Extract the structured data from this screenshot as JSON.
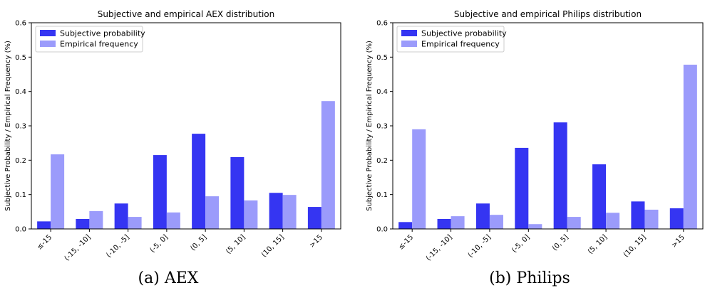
{
  "colors": {
    "subjective": "#3535f2",
    "empirical": "#9b9bfb"
  },
  "captions": [
    "(a) AEX",
    "(b) Philips"
  ],
  "chart_data": [
    {
      "type": "bar",
      "title": "Subjective and empirical AEX distribution",
      "ylabel": "Subjective Probability / Empirical Frequency (%)",
      "xlabel": "",
      "ylim": [
        0,
        0.6
      ],
      "yticks": [
        "0.0",
        "0.1",
        "0.2",
        "0.3",
        "0.4",
        "0.5",
        "0.6"
      ],
      "categories": [
        "≤-15",
        "(-15, -10]",
        "(-10, -5]",
        "(-5, 0]",
        "(0, 5]",
        "(5, 10]",
        "(10, 15]",
        ">15"
      ],
      "legend_position": "top-left",
      "series": [
        {
          "name": "Subjective probability",
          "values": [
            0.022,
            0.029,
            0.074,
            0.215,
            0.277,
            0.209,
            0.105,
            0.064
          ]
        },
        {
          "name": "Empirical frequency",
          "values": [
            0.217,
            0.052,
            0.035,
            0.048,
            0.095,
            0.083,
            0.099,
            0.372
          ]
        }
      ]
    },
    {
      "type": "bar",
      "title": "Subjective and empirical Philips distribution",
      "ylabel": "Subjective Probability / Empirical Frequency (%)",
      "xlabel": "",
      "ylim": [
        0,
        0.6
      ],
      "yticks": [
        "0.0",
        "0.1",
        "0.2",
        "0.3",
        "0.4",
        "0.5",
        "0.6"
      ],
      "categories": [
        "≤-15",
        "(-15, -10]",
        "(-10, -5]",
        "(-5, 0]",
        "(0, 5]",
        "(5, 10]",
        "(10, 15]",
        ">15"
      ],
      "legend_position": "top-left",
      "series": [
        {
          "name": "Subjective probability",
          "values": [
            0.02,
            0.029,
            0.074,
            0.236,
            0.31,
            0.188,
            0.08,
            0.06
          ]
        },
        {
          "name": "Empirical frequency",
          "values": [
            0.29,
            0.037,
            0.041,
            0.014,
            0.035,
            0.047,
            0.056,
            0.478
          ]
        }
      ]
    }
  ]
}
